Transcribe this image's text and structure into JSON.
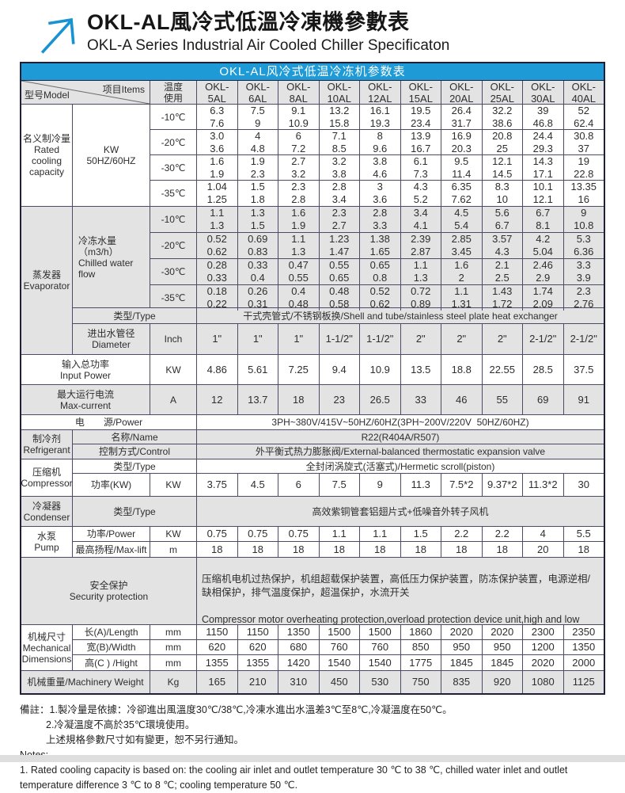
{
  "header": {
    "title_zh": "OKL-AL風冷式低溫冷凍機參數表",
    "title_en": "OKL-A Series Industrial Air Cooled Chiller Specificaton"
  },
  "colors": {
    "accent_blue": "#1e9ad6",
    "row_gray": "#e3e3e3",
    "border": "#4b4b66"
  },
  "table": {
    "caption": "OKL-AL风冷式低温冷冻机参数表",
    "corner_model": "型号Model",
    "corner_items": "项目Items",
    "temp_use": "温度\n使用",
    "models": [
      "OKL-\n5AL",
      "OKL-\n6AL",
      "OKL-\n8AL",
      "OKL-\n10AL",
      "OKL-\n12AL",
      "OKL-\n15AL",
      "OKL-\n20AL",
      "OKL-\n25AL",
      "OKL-\n30AL",
      "OKL-\n40AL"
    ],
    "cooling": {
      "label": "名义制冷量\nRated cooling capacity",
      "unit": "KW\n50HZ/60HZ",
      "rows": [
        {
          "temp": "-10℃",
          "values": [
            "6.3\n7.6",
            "7.5\n9",
            "9.1\n10.9",
            "13.2\n15.8",
            "16.1\n19.3",
            "19.5\n23.4",
            "26.4\n31.7",
            "32.2\n38.6",
            "39\n46.8",
            "52\n62.4"
          ]
        },
        {
          "temp": "-20℃",
          "values": [
            "3.0\n3.6",
            "4\n4.8",
            "6\n7.2",
            "7.1\n8.5",
            "8\n9.6",
            "13.9\n16.7",
            "16.9\n20.3",
            "20.8\n25",
            "24.4\n29.3",
            "30.8\n37"
          ]
        },
        {
          "temp": "-30℃",
          "values": [
            "1.6\n1.9",
            "1.9\n2.3",
            "2.7\n3.2",
            "3.2\n3.8",
            "3.8\n4.6",
            "6.1\n7.3",
            "9.5\n11.4",
            "12.1\n14.5",
            "14.3\n17.1",
            "19\n22.8"
          ]
        },
        {
          "temp": "-35℃",
          "values": [
            "1.04\n1.25",
            "1.5\n1.8",
            "2.3\n2.8",
            "2.8\n3.4",
            "3\n3.6",
            "4.3\n5.2",
            "6.35\n7.62",
            "8.3\n10",
            "10.1\n12.1",
            "13.35\n16"
          ]
        }
      ]
    },
    "evaporator": {
      "label": "蒸发器\nEvaporator",
      "flow_label": "冷冻水量（m3/h）\nChilled water flow",
      "rows": [
        {
          "temp": "-10℃",
          "values": [
            "1.1\n1.3",
            "1.3\n1.5",
            "1.6\n1.9",
            "2.3\n2.7",
            "2.8\n3.3",
            "3.4\n4.1",
            "4.5\n5.4",
            "5.6\n6.7",
            "6.7\n8.1",
            "9\n10.8"
          ]
        },
        {
          "temp": "-20℃",
          "values": [
            "0.52\n0.62",
            "0.69\n0.83",
            "1.1\n1.3",
            "1.23\n1.47",
            "1.38\n1.65",
            "2.39\n2.87",
            "2.85\n3.45",
            "3.57\n4.3",
            "4.2\n5.04",
            "5.3\n6.36"
          ]
        },
        {
          "temp": "-30℃",
          "values": [
            "0.28\n0.33",
            "0.33\n0.4",
            "0.47\n0.55",
            "0.55\n0.65",
            "0.65\n0.8",
            "1.1\n1.3",
            "1.6\n2",
            "2.1\n2.5",
            "2.46\n2.9",
            "3.3\n3.9"
          ]
        },
        {
          "temp": "-35℃",
          "values": [
            "0.18\n0.22",
            "0.26\n0.31",
            "0.4\n0.48",
            "0.48\n0.58",
            "0.52\n0.62",
            "0.72\n0.89",
            "1.1\n1.31",
            "1.43\n1.72",
            "1.74\n2.09",
            "2.3\n2.76"
          ]
        }
      ],
      "type_label": "类型/Type",
      "type_value": "干式壳管式/不锈钢板换/Shell and tube/stainless steel plate heat exchanger",
      "diameter_label": "进出水管径\nDiameter",
      "diameter_unit": "Inch",
      "diameter_values": [
        "1\"",
        "1\"",
        "1\"",
        "1-1/2\"",
        "1-1/2\"",
        "2\"",
        "2\"",
        "2\"",
        "2-1/2\"",
        "2-1/2\""
      ]
    },
    "input_power": {
      "label": "输入总功率\nInput Power",
      "unit": "KW",
      "values": [
        "4.86",
        "5.61",
        "7.25",
        "9.4",
        "10.9",
        "13.5",
        "18.8",
        "22.55",
        "28.5",
        "37.5"
      ]
    },
    "max_current": {
      "label": "最大运行电流\nMax-current",
      "unit": "A",
      "values": [
        "12",
        "13.7",
        "18",
        "23",
        "26.5",
        "33",
        "46",
        "55",
        "69",
        "91"
      ]
    },
    "power_supply": {
      "label": "电　　源/Power",
      "value": "3PH~380V/415V~50HZ/60HZ(3PH~200V/220V  50HZ/60HZ)"
    },
    "refrigerant": {
      "label": "制冷剂\nRefrigerant",
      "name_label": "名称/Name",
      "name_value": "R22(R404A/R507)",
      "control_label": "控制方式/Control",
      "control_value": "外平衡式热力膨胀阀/External-balanced thermostatic expansion valve"
    },
    "compressor": {
      "label": "压缩机\nCompressor",
      "type_label": "类型/Type",
      "type_value": "全封闭涡旋式(活塞式)/Hermetic scroll(piston)",
      "power_label": "功率(KW)",
      "power_unit": "KW",
      "power_values": [
        "3.75",
        "4.5",
        "6",
        "7.5",
        "9",
        "11.3",
        "7.5*2",
        "9.37*2",
        "11.3*2",
        "30"
      ]
    },
    "condenser": {
      "label": "冷凝器\nCondenser",
      "type_label": "类型/Type",
      "type_value": "高效紫铜管套铝翅片式+低噪音外转子风机"
    },
    "pump": {
      "label": "水泵\nPump",
      "power_label": "功率/Power",
      "power_unit": "KW",
      "power_values": [
        "0.75",
        "0.75",
        "0.75",
        "1.1",
        "1.1",
        "1.5",
        "2.2",
        "2.2",
        "4",
        "5.5"
      ],
      "lift_label": "最高扬程/Max-lift",
      "lift_unit": "m",
      "lift_values": [
        "18",
        "18",
        "18",
        "18",
        "18",
        "18",
        "18",
        "18",
        "20",
        "18"
      ]
    },
    "security": {
      "label": "安全保护\nSecurity protection",
      "text_zh": "压缩机电机过热保护，机组超载保护装置，高低压力保护装置，防冻保护装置，电源逆相/缺相保护，排气温度保护，超温保护，水流开关",
      "text_en": " Compressor motor overheating protection,overload protection device unit,high and low pressure protection device,anti-freezing protection device,power reverse phase/phase protection,exhaust temperature protection,over-temperature protection,flow switches"
    },
    "dimensions": {
      "label": "机械尺寸\nMechanical\nDimensions",
      "rows": [
        {
          "label": "长(A)/Length",
          "unit": "mm",
          "values": [
            "1150",
            "1150",
            "1350",
            "1500",
            "1500",
            "1860",
            "2020",
            "2020",
            "2300",
            "2350"
          ]
        },
        {
          "label": "宽(B)/Width",
          "unit": "mm",
          "values": [
            "620",
            "620",
            "680",
            "760",
            "760",
            "850",
            "950",
            "950",
            "1200",
            "1350"
          ]
        },
        {
          "label": "高(C ) /Hight",
          "unit": "mm",
          "values": [
            "1355",
            "1355",
            "1420",
            "1540",
            "1540",
            "1775",
            "1845",
            "1845",
            "2020",
            "2000"
          ]
        }
      ]
    },
    "weight": {
      "label": "机械重量/Machinery Weight",
      "unit": "Kg",
      "values": [
        "165",
        "210",
        "310",
        "450",
        "530",
        "750",
        "835",
        "920",
        "1080",
        "1125"
      ]
    }
  },
  "notes": {
    "zh1": "備註：1.製冷量是依據：冷卻進出風溫度30℃/38℃,冷凍水進出水溫差3℃至8℃,冷凝溫度在50℃。",
    "zh2": "2.冷凝溫度不高於35℃環境使用。",
    "zh3": "上述規格參數尺寸如有變更，恕不另行通知。",
    "en_title": "Notes:",
    "en1": "1. Rated cooling capacity is based on: the cooling air inlet and outlet temperature 30 ℃ to 38 ℃, chilled water inlet and outlet temperature difference 3 ℃ to 8 ℃; cooling temperature 50 ℃."
  }
}
